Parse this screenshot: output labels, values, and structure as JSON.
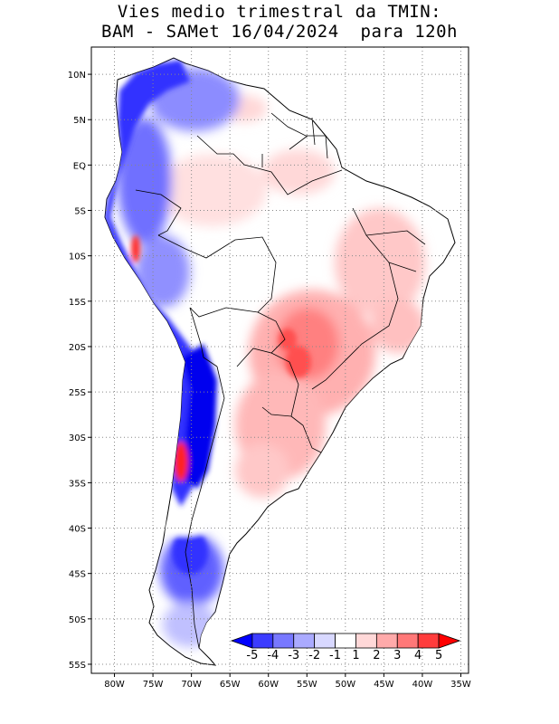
{
  "title": {
    "line1": "Vies medio trimestral da TMIN:",
    "line2": "BAM - SAMet 16/04/2024  para 120h"
  },
  "axes": {
    "lon_ticks": [
      {
        "value": -80,
        "label": "80W"
      },
      {
        "value": -75,
        "label": "75W"
      },
      {
        "value": -70,
        "label": "70W"
      },
      {
        "value": -65,
        "label": "65W"
      },
      {
        "value": -60,
        "label": "60W"
      },
      {
        "value": -55,
        "label": "55W"
      },
      {
        "value": -50,
        "label": "50W"
      },
      {
        "value": -45,
        "label": "45W"
      },
      {
        "value": -40,
        "label": "40W"
      },
      {
        "value": -35,
        "label": "35W"
      }
    ],
    "lat_ticks": [
      {
        "value": 10,
        "label": "10N"
      },
      {
        "value": 5,
        "label": "5N"
      },
      {
        "value": 0,
        "label": "EQ"
      },
      {
        "value": -5,
        "label": "5S"
      },
      {
        "value": -10,
        "label": "10S"
      },
      {
        "value": -15,
        "label": "15S"
      },
      {
        "value": -20,
        "label": "20S"
      },
      {
        "value": -25,
        "label": "25S"
      },
      {
        "value": -30,
        "label": "30S"
      },
      {
        "value": -35,
        "label": "35S"
      },
      {
        "value": -40,
        "label": "40S"
      },
      {
        "value": -45,
        "label": "45S"
      },
      {
        "value": -50,
        "label": "50S"
      },
      {
        "value": -55,
        "label": "55S"
      }
    ],
    "lon_range": [
      -83,
      -34
    ],
    "lat_range": [
      -56,
      13
    ],
    "grid": "dotted"
  },
  "colorbar": {
    "labels": [
      "-5",
      "-4",
      "-3",
      "-2",
      "-1",
      "1",
      "2",
      "3",
      "4",
      "5"
    ],
    "colors": [
      "#0000ff",
      "#3c3cff",
      "#7878ff",
      "#aaaaff",
      "#d8d8ff",
      "#ffffff",
      "#ffd8d8",
      "#ffaaaa",
      "#ff7878",
      "#ff3c3c",
      "#ff0000"
    ]
  }
}
